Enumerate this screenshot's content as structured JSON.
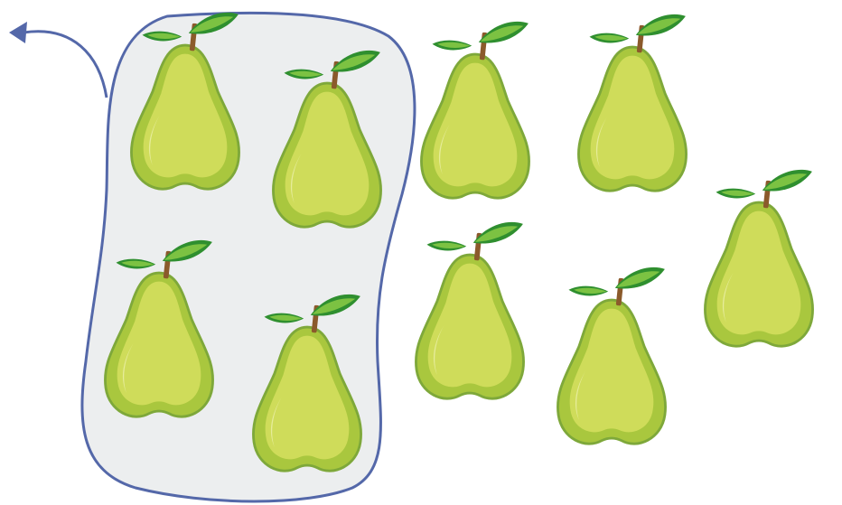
{
  "diagram": {
    "group": {
      "fill": "#eceeef",
      "stroke": "#5468a9",
      "grouped_count": 4
    },
    "arrow": {
      "color": "#5468a9",
      "direction": "left"
    },
    "pear": {
      "icon": "pear-icon",
      "body_color": "#a9c73e",
      "body_light": "#cfdc5a",
      "outline": "#7ea83a",
      "stem_color": "#8b5a2b",
      "leaf_dark": "#2f8f2f",
      "leaf_light": "#7cc242"
    },
    "total_count": 9,
    "outside_count": 5
  }
}
